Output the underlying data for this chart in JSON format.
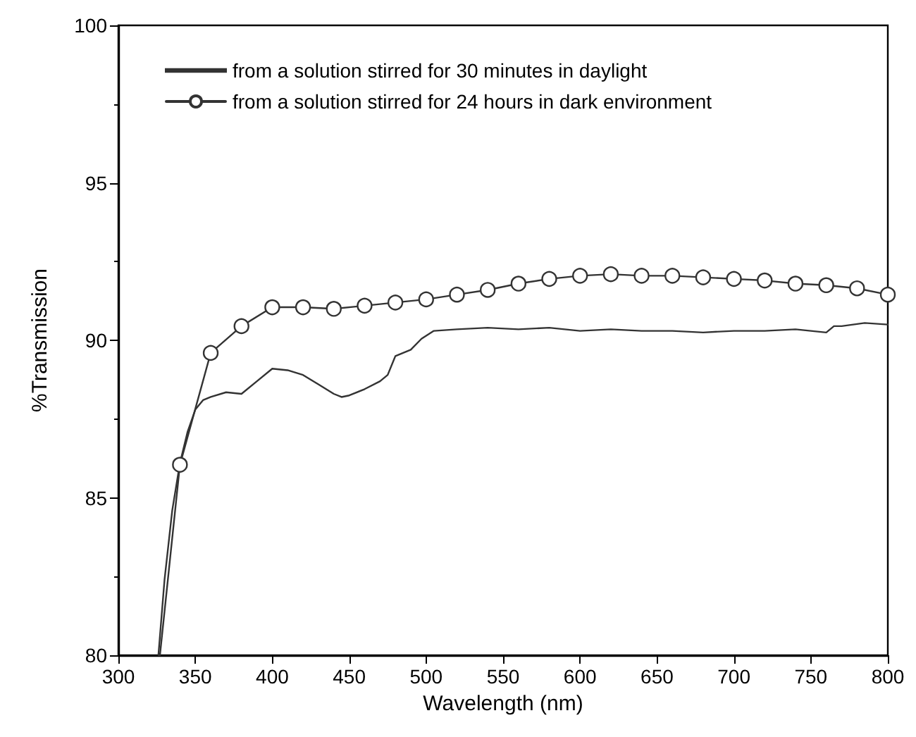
{
  "chart_data": {
    "type": "line",
    "xlabel": "Wavelength (nm)",
    "ylabel": "%Transmission",
    "xlim": [
      300,
      800
    ],
    "xticks": [
      300,
      350,
      400,
      450,
      500,
      550,
      600,
      650,
      700,
      750,
      800
    ],
    "ylim": [
      80,
      100
    ],
    "yticks": [
      80,
      85,
      90,
      95,
      100
    ],
    "grid": false,
    "legend": "top",
    "line_style": "solid",
    "series": [
      {
        "name": "from a solution stirred for 30 minutes in daylight",
        "color": "#333333",
        "marker": "none",
        "x": [
          326,
          330,
          335,
          340,
          345,
          350,
          355,
          360,
          370,
          380,
          390,
          400,
          410,
          420,
          430,
          440,
          445,
          450,
          460,
          470,
          475,
          480,
          490,
          497,
          505,
          520,
          540,
          560,
          580,
          600,
          620,
          640,
          660,
          680,
          700,
          720,
          740,
          760,
          765,
          770,
          785,
          800
        ],
        "values": [
          80,
          82.4,
          84.6,
          86.1,
          87.1,
          87.8,
          88.1,
          88.2,
          88.35,
          88.3,
          88.7,
          89.1,
          89.05,
          88.9,
          88.6,
          88.3,
          88.2,
          88.25,
          88.45,
          88.7,
          88.9,
          89.5,
          89.7,
          90.05,
          90.3,
          90.35,
          90.4,
          90.35,
          90.4,
          90.3,
          90.35,
          90.3,
          90.3,
          90.25,
          90.3,
          90.3,
          90.35,
          90.25,
          90.45,
          90.45,
          90.55,
          90.5
        ]
      },
      {
        "name": "from a solution stirred for 24 hours in dark environment",
        "color": "#333333",
        "marker": "circle",
        "x": [
          327,
          340,
          360,
          380,
          400,
          420,
          440,
          460,
          480,
          500,
          520,
          540,
          560,
          580,
          600,
          620,
          640,
          660,
          680,
          700,
          720,
          740,
          760,
          780,
          800
        ],
        "values": [
          80,
          86.05,
          89.6,
          90.45,
          91.05,
          91.05,
          91.0,
          91.1,
          91.2,
          91.3,
          91.45,
          91.6,
          91.8,
          91.95,
          92.05,
          92.1,
          92.05,
          92.05,
          92.0,
          91.95,
          91.9,
          91.8,
          91.75,
          91.65,
          91.45
        ]
      }
    ]
  }
}
